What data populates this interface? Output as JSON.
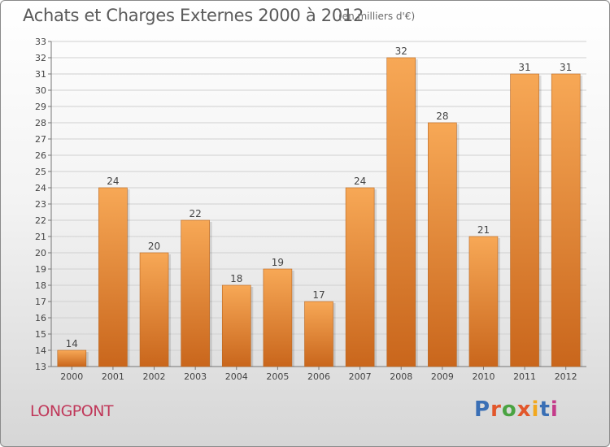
{
  "header": {
    "title": "Achats et Charges Externes 2000 à 2012",
    "unit": "(en milliers d'€)"
  },
  "footer": {
    "city": "LONGPONT",
    "logo": "Proxiti"
  },
  "colors": {
    "bar_top": "#f7a856",
    "bar_bottom": "#c9661c",
    "title_text": "#5a5a5a",
    "city_text": "#c0385a",
    "logo_letters": [
      "#3a6fb5",
      "#e2572b",
      "#4aa342",
      "#e2572b",
      "#f2a81e",
      "#3a6fb5",
      "#c43b8a"
    ]
  },
  "chart_data": {
    "type": "bar",
    "title": "Achats et Charges Externes 2000 à 2012",
    "xlabel": "",
    "ylabel": "",
    "categories": [
      "2000",
      "2001",
      "2002",
      "2003",
      "2004",
      "2005",
      "2006",
      "2007",
      "2008",
      "2009",
      "2010",
      "2011",
      "2012"
    ],
    "values": [
      14,
      24,
      20,
      22,
      18,
      19,
      17,
      24,
      32,
      28,
      21,
      31,
      31
    ],
    "data_labels": [
      "14",
      "24",
      "20",
      "22",
      "18",
      "19",
      "17",
      "24",
      "32",
      "28",
      "21",
      "31",
      "31"
    ],
    "ylim": [
      13,
      33
    ],
    "yticks": [
      "13",
      "14",
      "15",
      "16",
      "17",
      "18",
      "19",
      "20",
      "21",
      "22",
      "23",
      "24",
      "25",
      "26",
      "27",
      "28",
      "29",
      "30",
      "31",
      "32",
      "33"
    ],
    "grid": true,
    "legend": "none"
  }
}
